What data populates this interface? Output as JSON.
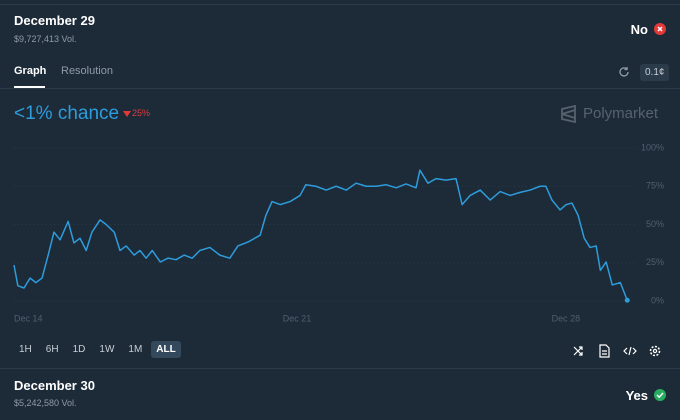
{
  "market": {
    "title": "December 29",
    "volume": "$9,727,413 Vol.",
    "outcome": "No"
  },
  "tabs": [
    "Graph",
    "Resolution"
  ],
  "precision": "0.1¢",
  "headline": {
    "chance": "<1% chance",
    "change": "25%"
  },
  "brand": "Polymarket",
  "ranges": [
    "1H",
    "6H",
    "1D",
    "1W",
    "1M",
    "ALL"
  ],
  "next_market": {
    "title": "December 30",
    "volume": "$5,242,580 Vol.",
    "outcome": "Yes"
  },
  "chart_data": {
    "type": "line",
    "x": [
      14.0,
      14.1,
      14.26,
      14.42,
      14.57,
      14.73,
      14.89,
      15.04,
      15.2,
      15.41,
      15.56,
      15.72,
      15.88,
      16.03,
      16.24,
      16.4,
      16.61,
      16.76,
      16.92,
      17.13,
      17.28,
      17.44,
      17.6,
      17.81,
      18.01,
      18.22,
      18.43,
      18.64,
      18.84,
      19.1,
      19.36,
      19.62,
      19.83,
      20.09,
      20.41,
      20.56,
      20.72,
      20.93,
      21.19,
      21.45,
      21.6,
      21.86,
      22.13,
      22.39,
      22.65,
      22.91,
      23.17,
      23.43,
      23.69,
      23.95,
      24.21,
      24.47,
      24.57,
      24.78,
      24.99,
      25.25,
      25.51,
      25.67,
      25.88,
      26.14,
      26.4,
      26.66,
      26.92,
      27.18,
      27.44,
      27.7,
      27.85,
      28.01,
      28.22,
      28.38,
      28.53,
      28.69,
      28.85,
      29.0,
      29.16,
      29.27,
      29.42,
      29.58,
      29.79,
      29.97
    ],
    "series": [
      {
        "color": "#2d9cdb",
        "values": [
          23.5,
          10,
          8.5,
          15,
          12,
          15,
          30,
          45,
          40,
          52,
          38,
          41,
          33,
          45,
          53,
          50,
          45,
          33,
          36,
          30,
          33,
          28,
          33,
          25.5,
          28,
          27,
          30,
          28,
          33,
          35,
          30,
          28,
          36,
          38.5,
          43,
          56,
          65,
          63,
          65,
          69,
          76,
          75,
          72.5,
          75,
          72.5,
          77,
          75,
          75,
          76,
          74,
          76.5,
          74,
          85.5,
          77,
          80,
          79,
          80,
          63,
          69,
          72.5,
          66,
          71.5,
          69,
          71,
          72.5,
          75,
          75,
          66,
          59.5,
          63,
          64,
          56,
          41,
          35,
          36,
          20,
          25.5,
          10.5,
          12,
          0.5
        ]
      }
    ],
    "xlim": [
      14,
      30
    ],
    "xticks": [
      {
        "value": 14,
        "label": "Dec 14"
      },
      {
        "value": 21,
        "label": "Dec 21"
      },
      {
        "value": 28,
        "label": "Dec 28"
      }
    ],
    "ylim": [
      0,
      100
    ],
    "yticks": [
      {
        "value": 0,
        "label": "0%"
      },
      {
        "value": 25,
        "label": "25%"
      },
      {
        "value": 50,
        "label": "50%"
      },
      {
        "value": 75,
        "label": "75%"
      },
      {
        "value": 100,
        "label": "100%"
      }
    ],
    "grid": true
  }
}
